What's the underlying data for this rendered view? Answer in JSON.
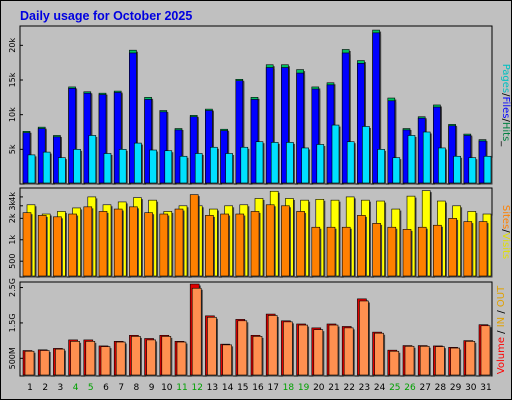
{
  "chart_data": [
    {
      "type": "bar",
      "title": "Daily usage for October 2025",
      "categories": [
        "1",
        "2",
        "3",
        "4",
        "5",
        "6",
        "7",
        "8",
        "9",
        "10",
        "11",
        "12",
        "13",
        "14",
        "15",
        "16",
        "17",
        "18",
        "19",
        "20",
        "21",
        "22",
        "23",
        "24",
        "25",
        "26",
        "27",
        "28",
        "29",
        "30",
        "31"
      ],
      "weekend_days": [
        "4",
        "5",
        "11",
        "12",
        "18",
        "19",
        "25",
        "26"
      ],
      "y_ticks": [
        "5k",
        "10k",
        "15k",
        "20k"
      ],
      "ylim": [
        0,
        22500
      ],
      "legend": [
        {
          "label": "Pages",
          "color": "#00c0c0"
        },
        {
          "label": "Files",
          "color": "#0000ff"
        },
        {
          "label": "Hits",
          "color": "#008040"
        }
      ],
      "legend_separator": "/",
      "legend_trailing": "_",
      "series": [
        {
          "name": "Hits",
          "color": "#00c060",
          "values": [
            7600,
            8200,
            7000,
            14000,
            13300,
            13100,
            13400,
            19300,
            12500,
            10600,
            8000,
            9900,
            10800,
            7900,
            15100,
            12500,
            17200,
            17200,
            16500,
            14000,
            14600,
            19400,
            17800,
            22200,
            12400,
            8000,
            9700,
            11400,
            8600,
            7200,
            6400
          ]
        },
        {
          "name": "Files",
          "color": "#0000ff",
          "values": [
            7400,
            8000,
            6800,
            13800,
            13100,
            12900,
            13200,
            18900,
            12200,
            10400,
            7800,
            9700,
            10600,
            7700,
            14900,
            12200,
            16800,
            16800,
            16000,
            13700,
            14300,
            18900,
            17400,
            21800,
            12000,
            7800,
            9500,
            11100,
            8400,
            7000,
            6200
          ]
        },
        {
          "name": "Pages",
          "color": "#00e0ff",
          "values": [
            4200,
            4600,
            3800,
            5000,
            7000,
            4400,
            5000,
            5900,
            4900,
            4800,
            4000,
            4400,
            5300,
            4400,
            5300,
            6100,
            6000,
            6000,
            5200,
            5700,
            8500,
            6100,
            8300,
            5000,
            3800,
            7000,
            7500,
            5200,
            4000,
            3800,
            4000
          ]
        }
      ]
    },
    {
      "type": "bar",
      "categories": [
        "1",
        "2",
        "3",
        "4",
        "5",
        "6",
        "7",
        "8",
        "9",
        "10",
        "11",
        "12",
        "13",
        "14",
        "15",
        "16",
        "17",
        "18",
        "19",
        "20",
        "21",
        "22",
        "23",
        "24",
        "25",
        "26",
        "27",
        "28",
        "29",
        "30",
        "31"
      ],
      "y_ticks": [
        "500",
        "1k",
        "2k",
        "3k",
        "4k"
      ],
      "legend": [
        {
          "label": "Sites",
          "color": "#ff8000"
        },
        {
          "label": "Visits",
          "color": "#e0e000"
        }
      ],
      "legend_separator": "/",
      "series": [
        {
          "name": "Visits",
          "color": "#ffff00",
          "values": [
            3100,
            2300,
            2500,
            2800,
            4000,
            3100,
            3400,
            3900,
            3600,
            2500,
            3000,
            3000,
            2700,
            3000,
            3100,
            3800,
            4800,
            3800,
            3600,
            3700,
            3600,
            4000,
            3600,
            3500,
            2700,
            4100,
            4900,
            3500,
            3000,
            2500,
            2300
          ]
        },
        {
          "name": "Sites",
          "color": "#ff8000",
          "values": [
            2400,
            2200,
            2100,
            2300,
            2900,
            2500,
            2700,
            2900,
            2400,
            2300,
            2700,
            4300,
            2200,
            2300,
            2300,
            2500,
            3100,
            3000,
            2500,
            1500,
            1500,
            1500,
            2200,
            1700,
            1500,
            1400,
            1500,
            1600,
            2000,
            1800,
            1800
          ]
        }
      ]
    },
    {
      "type": "bar",
      "categories": [
        "1",
        "2",
        "3",
        "4",
        "5",
        "6",
        "7",
        "8",
        "9",
        "10",
        "11",
        "12",
        "13",
        "14",
        "15",
        "16",
        "17",
        "18",
        "19",
        "20",
        "21",
        "22",
        "23",
        "24",
        "25",
        "26",
        "27",
        "28",
        "29",
        "30",
        "31"
      ],
      "y_ticks": [
        "500M",
        "1.5G",
        "2.5G"
      ],
      "ylim": [
        0,
        2600
      ],
      "legend": [
        {
          "label": "Volume",
          "color": "#ff0000"
        },
        {
          "label": "IN",
          "color": "#e0a000"
        },
        {
          "label": "OUT",
          "color": "#e0a000"
        }
      ],
      "legend_separator": "/",
      "series": [
        {
          "name": "In",
          "color": "#e00000",
          "values": [
            720,
            740,
            780,
            1020,
            1020,
            850,
            980,
            1150,
            1060,
            1150,
            980,
            2600,
            1700,
            900,
            1600,
            1150,
            1750,
            1560,
            1470,
            1360,
            1470,
            1400,
            2180,
            1240,
            730,
            860,
            860,
            850,
            810,
            1000,
            1450
          ]
        },
        {
          "name": "Out",
          "color": "#ff9050",
          "values": [
            700,
            720,
            760,
            980,
            980,
            830,
            960,
            1120,
            1020,
            1120,
            960,
            2480,
            1660,
            880,
            1560,
            1120,
            1710,
            1530,
            1440,
            1310,
            1440,
            1360,
            2120,
            1210,
            700,
            840,
            840,
            830,
            790,
            980,
            1420
          ]
        }
      ]
    }
  ],
  "colors": {
    "background": "#c0c0c0",
    "plot_area": "#c0c0c0",
    "weekday_label": "#000000",
    "weekend_label": "#00a000",
    "title": "#0000e0"
  }
}
